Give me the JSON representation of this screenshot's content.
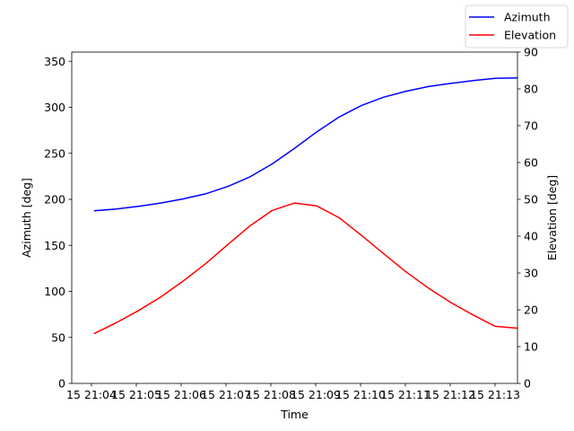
{
  "chart_data": {
    "type": "line",
    "xlabel": "Time",
    "ylabel_left": "Azimuth [deg]",
    "ylabel_right": "Elevation [deg]",
    "x_ticks": [
      "15 21:04",
      "15 21:05",
      "15 21:06",
      "15 21:07",
      "15 21:08",
      "15 21:09",
      "15 21:10",
      "15 21:11",
      "15 21:12",
      "15 21:13"
    ],
    "x_times": [
      "21:04:30",
      "21:05:00",
      "21:05:30",
      "21:06:00",
      "21:06:30",
      "21:07:00",
      "21:07:30",
      "21:08:00",
      "21:08:30",
      "21:09:00",
      "21:09:30",
      "21:10:00",
      "21:10:30",
      "21:11:00",
      "21:11:30",
      "21:12:00",
      "21:12:30",
      "21:13:00",
      "21:13:30",
      "21:14:00"
    ],
    "xlim": [
      "21:04:00",
      "21:14:00"
    ],
    "left_ylim": [
      0,
      360
    ],
    "left_yticks": [
      0,
      50,
      100,
      150,
      200,
      250,
      300,
      350
    ],
    "right_ylim": [
      0,
      90
    ],
    "right_yticks": [
      0,
      10,
      20,
      30,
      40,
      50,
      60,
      70,
      80,
      90
    ],
    "legend_position": "top-right",
    "series": [
      {
        "name": "Azimuth",
        "axis": "left",
        "color": "#0000ff",
        "values": [
          187.5,
          189.5,
          192.5,
          196,
          200.5,
          206,
          214,
          224.5,
          238.5,
          255.5,
          273.5,
          289.5,
          302,
          311,
          317.5,
          322.5,
          326,
          329,
          331.5,
          332
        ]
      },
      {
        "name": "Elevation",
        "axis": "right",
        "color": "#ff0000",
        "values": [
          13.5,
          16.5,
          19.8,
          23.5,
          27.8,
          32.5,
          37.7,
          42.8,
          47,
          49,
          48.2,
          45,
          40.2,
          35.2,
          30.3,
          25.9,
          22,
          18.6,
          15.5,
          15
        ]
      }
    ]
  }
}
